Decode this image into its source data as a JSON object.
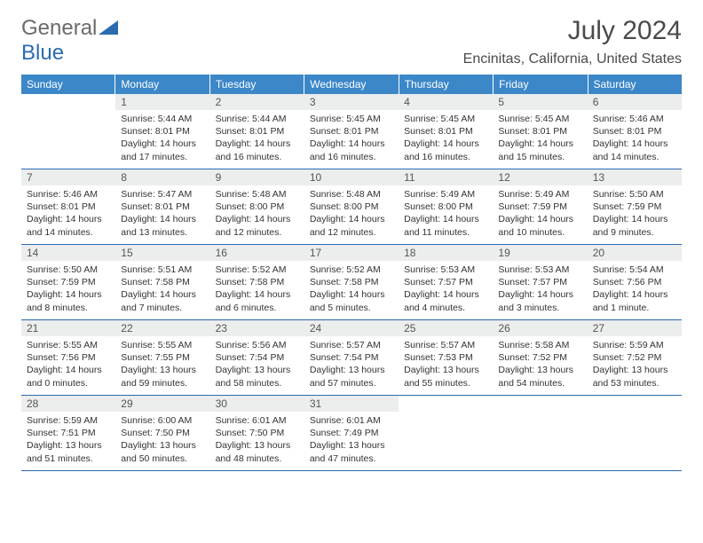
{
  "logo": {
    "text1": "General",
    "text2": "Blue"
  },
  "title": "July 2024",
  "subtitle": "Encinitas, California, United States",
  "colors": {
    "header_bg": "#3b87c8",
    "header_text": "#ffffff",
    "divider": "#2b6bb0",
    "daynum_bg": "#eceded",
    "daynum_text": "#555555",
    "body_text": "#333333",
    "logo_gray": "#6a6a6a",
    "logo_blue": "#2b6bb0"
  },
  "weekdays": [
    "Sunday",
    "Monday",
    "Tuesday",
    "Wednesday",
    "Thursday",
    "Friday",
    "Saturday"
  ],
  "weeks": [
    [
      {
        "empty": true
      },
      {
        "n": "1",
        "sr": "Sunrise: 5:44 AM",
        "ss": "Sunset: 8:01 PM",
        "dl": "Daylight: 14 hours and 17 minutes."
      },
      {
        "n": "2",
        "sr": "Sunrise: 5:44 AM",
        "ss": "Sunset: 8:01 PM",
        "dl": "Daylight: 14 hours and 16 minutes."
      },
      {
        "n": "3",
        "sr": "Sunrise: 5:45 AM",
        "ss": "Sunset: 8:01 PM",
        "dl": "Daylight: 14 hours and 16 minutes."
      },
      {
        "n": "4",
        "sr": "Sunrise: 5:45 AM",
        "ss": "Sunset: 8:01 PM",
        "dl": "Daylight: 14 hours and 16 minutes."
      },
      {
        "n": "5",
        "sr": "Sunrise: 5:45 AM",
        "ss": "Sunset: 8:01 PM",
        "dl": "Daylight: 14 hours and 15 minutes."
      },
      {
        "n": "6",
        "sr": "Sunrise: 5:46 AM",
        "ss": "Sunset: 8:01 PM",
        "dl": "Daylight: 14 hours and 14 minutes."
      }
    ],
    [
      {
        "n": "7",
        "sr": "Sunrise: 5:46 AM",
        "ss": "Sunset: 8:01 PM",
        "dl": "Daylight: 14 hours and 14 minutes."
      },
      {
        "n": "8",
        "sr": "Sunrise: 5:47 AM",
        "ss": "Sunset: 8:01 PM",
        "dl": "Daylight: 14 hours and 13 minutes."
      },
      {
        "n": "9",
        "sr": "Sunrise: 5:48 AM",
        "ss": "Sunset: 8:00 PM",
        "dl": "Daylight: 14 hours and 12 minutes."
      },
      {
        "n": "10",
        "sr": "Sunrise: 5:48 AM",
        "ss": "Sunset: 8:00 PM",
        "dl": "Daylight: 14 hours and 12 minutes."
      },
      {
        "n": "11",
        "sr": "Sunrise: 5:49 AM",
        "ss": "Sunset: 8:00 PM",
        "dl": "Daylight: 14 hours and 11 minutes."
      },
      {
        "n": "12",
        "sr": "Sunrise: 5:49 AM",
        "ss": "Sunset: 7:59 PM",
        "dl": "Daylight: 14 hours and 10 minutes."
      },
      {
        "n": "13",
        "sr": "Sunrise: 5:50 AM",
        "ss": "Sunset: 7:59 PM",
        "dl": "Daylight: 14 hours and 9 minutes."
      }
    ],
    [
      {
        "n": "14",
        "sr": "Sunrise: 5:50 AM",
        "ss": "Sunset: 7:59 PM",
        "dl": "Daylight: 14 hours and 8 minutes."
      },
      {
        "n": "15",
        "sr": "Sunrise: 5:51 AM",
        "ss": "Sunset: 7:58 PM",
        "dl": "Daylight: 14 hours and 7 minutes."
      },
      {
        "n": "16",
        "sr": "Sunrise: 5:52 AM",
        "ss": "Sunset: 7:58 PM",
        "dl": "Daylight: 14 hours and 6 minutes."
      },
      {
        "n": "17",
        "sr": "Sunrise: 5:52 AM",
        "ss": "Sunset: 7:58 PM",
        "dl": "Daylight: 14 hours and 5 minutes."
      },
      {
        "n": "18",
        "sr": "Sunrise: 5:53 AM",
        "ss": "Sunset: 7:57 PM",
        "dl": "Daylight: 14 hours and 4 minutes."
      },
      {
        "n": "19",
        "sr": "Sunrise: 5:53 AM",
        "ss": "Sunset: 7:57 PM",
        "dl": "Daylight: 14 hours and 3 minutes."
      },
      {
        "n": "20",
        "sr": "Sunrise: 5:54 AM",
        "ss": "Sunset: 7:56 PM",
        "dl": "Daylight: 14 hours and 1 minute."
      }
    ],
    [
      {
        "n": "21",
        "sr": "Sunrise: 5:55 AM",
        "ss": "Sunset: 7:56 PM",
        "dl": "Daylight: 14 hours and 0 minutes."
      },
      {
        "n": "22",
        "sr": "Sunrise: 5:55 AM",
        "ss": "Sunset: 7:55 PM",
        "dl": "Daylight: 13 hours and 59 minutes."
      },
      {
        "n": "23",
        "sr": "Sunrise: 5:56 AM",
        "ss": "Sunset: 7:54 PM",
        "dl": "Daylight: 13 hours and 58 minutes."
      },
      {
        "n": "24",
        "sr": "Sunrise: 5:57 AM",
        "ss": "Sunset: 7:54 PM",
        "dl": "Daylight: 13 hours and 57 minutes."
      },
      {
        "n": "25",
        "sr": "Sunrise: 5:57 AM",
        "ss": "Sunset: 7:53 PM",
        "dl": "Daylight: 13 hours and 55 minutes."
      },
      {
        "n": "26",
        "sr": "Sunrise: 5:58 AM",
        "ss": "Sunset: 7:52 PM",
        "dl": "Daylight: 13 hours and 54 minutes."
      },
      {
        "n": "27",
        "sr": "Sunrise: 5:59 AM",
        "ss": "Sunset: 7:52 PM",
        "dl": "Daylight: 13 hours and 53 minutes."
      }
    ],
    [
      {
        "n": "28",
        "sr": "Sunrise: 5:59 AM",
        "ss": "Sunset: 7:51 PM",
        "dl": "Daylight: 13 hours and 51 minutes."
      },
      {
        "n": "29",
        "sr": "Sunrise: 6:00 AM",
        "ss": "Sunset: 7:50 PM",
        "dl": "Daylight: 13 hours and 50 minutes."
      },
      {
        "n": "30",
        "sr": "Sunrise: 6:01 AM",
        "ss": "Sunset: 7:50 PM",
        "dl": "Daylight: 13 hours and 48 minutes."
      },
      {
        "n": "31",
        "sr": "Sunrise: 6:01 AM",
        "ss": "Sunset: 7:49 PM",
        "dl": "Daylight: 13 hours and 47 minutes."
      },
      {
        "empty": true
      },
      {
        "empty": true
      },
      {
        "empty": true
      }
    ]
  ]
}
